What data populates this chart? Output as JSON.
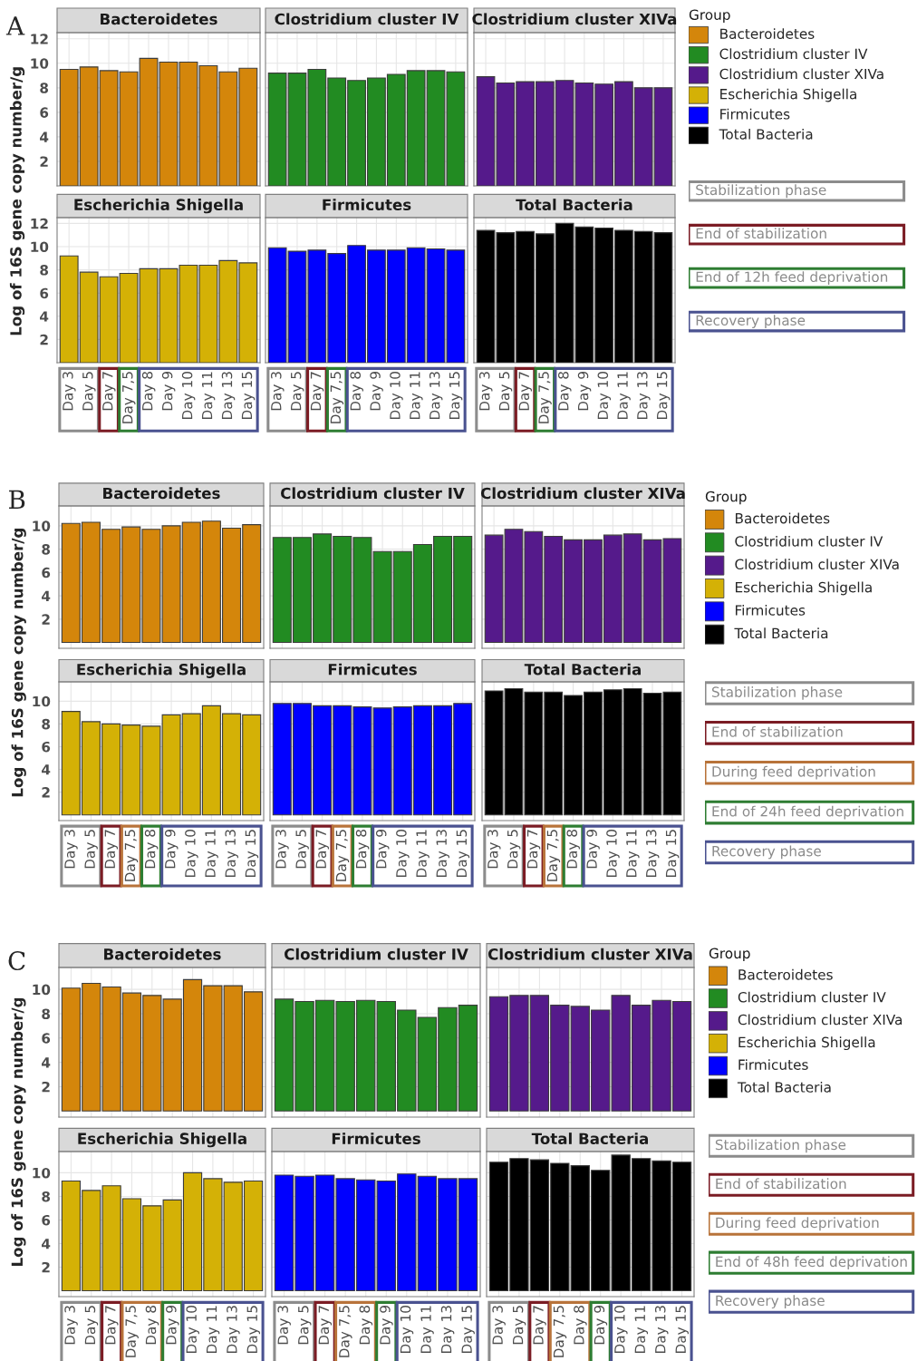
{
  "chart_data": [
    {
      "type": "bar",
      "title": "Bacteroidetes",
      "ylabel": "Log of 16S gene copy number/g",
      "annotations": [
        "A"
      ],
      "categories": [
        "Day 3",
        "Day 5",
        "Day 7",
        "Day 7,5",
        "Day 8",
        "Day 9",
        "Day 10",
        "Day 11",
        "Day 13",
        "Day 15"
      ],
      "values": [
        9.5,
        9.7,
        9.4,
        9.3,
        10.4,
        10.1,
        10.1,
        9.8,
        9.3,
        9.6
      ],
      "color": "#d4860b",
      "ylim": [
        0,
        12.5
      ],
      "yticks": [
        2,
        4,
        6,
        8,
        10,
        12
      ],
      "grid": true,
      "tick_labels": "y"
    },
    {
      "type": "bar",
      "title": "Clostridium cluster IV",
      "categories": [
        "Day 3",
        "Day 5",
        "Day 7",
        "Day 7,5",
        "Day 8",
        "Day 9",
        "Day 10",
        "Day 11",
        "Day 13",
        "Day 15"
      ],
      "values": [
        9.2,
        9.2,
        9.5,
        8.8,
        8.6,
        8.8,
        9.1,
        9.4,
        9.4,
        9.3
      ],
      "color": "#228b22",
      "ylim": [
        0,
        12.5
      ],
      "yticks": [
        2,
        4,
        6,
        8,
        10,
        12
      ],
      "grid": true,
      "tick_labels": false
    },
    {
      "type": "bar",
      "title": "Clostridium cluster XIVa",
      "categories": [
        "Day 3",
        "Day 5",
        "Day 7",
        "Day 7,5",
        "Day 8",
        "Day 9",
        "Day 10",
        "Day 11",
        "Day 13",
        "Day 15"
      ],
      "values": [
        8.9,
        8.4,
        8.5,
        8.5,
        8.6,
        8.4,
        8.3,
        8.5,
        8.0,
        8.0
      ],
      "color": "#551a8b",
      "ylim": [
        0,
        12.5
      ],
      "yticks": [
        2,
        4,
        6,
        8,
        10,
        12
      ],
      "grid": true,
      "tick_labels": false
    },
    {
      "type": "bar",
      "title": "Escherichia Shigella",
      "categories": [
        "Day 3",
        "Day 5",
        "Day 7",
        "Day 7,5",
        "Day 8",
        "Day 9",
        "Day 10",
        "Day 11",
        "Day 13",
        "Day 15"
      ],
      "values": [
        9.2,
        7.8,
        7.4,
        7.7,
        8.1,
        8.1,
        8.4,
        8.4,
        8.8,
        8.6
      ],
      "color": "#d4b106",
      "ylim": [
        0,
        12.5
      ],
      "yticks": [
        2,
        4,
        6,
        8,
        10,
        12
      ],
      "grid": true
    },
    {
      "type": "bar",
      "title": "Firmicutes",
      "categories": [
        "Day 3",
        "Day 5",
        "Day 7",
        "Day 7,5",
        "Day 8",
        "Day 9",
        "Day 10",
        "Day 11",
        "Day 13",
        "Day 15"
      ],
      "values": [
        9.9,
        9.6,
        9.7,
        9.4,
        10.1,
        9.7,
        9.7,
        9.9,
        9.8,
        9.7
      ],
      "color": "#0000ff",
      "ylim": [
        0,
        12.5
      ],
      "yticks": [
        2,
        4,
        6,
        8,
        10,
        12
      ],
      "grid": true,
      "tick_labels": "x"
    },
    {
      "type": "bar",
      "title": "Total Bacteria",
      "categories": [
        "Day 3",
        "Day 5",
        "Day 7",
        "Day 7,5",
        "Day 8",
        "Day 9",
        "Day 10",
        "Day 11",
        "Day 13",
        "Day 15"
      ],
      "values": [
        11.4,
        11.2,
        11.3,
        11.1,
        12.0,
        11.7,
        11.6,
        11.4,
        11.3,
        11.2
      ],
      "color": "#000000",
      "ylim": [
        0,
        12.5
      ],
      "yticks": [
        2,
        4,
        6,
        8,
        10,
        12
      ],
      "grid": true,
      "tick_labels": "x"
    },
    {
      "type": "other",
      "legend_title": "Group",
      "series": [
        {
          "name": "Bacteroidetes",
          "color": "#d4860b"
        },
        {
          "name": "Clostridium cluster IV",
          "color": "#228b22"
        },
        {
          "name": "Clostridium cluster XIVa",
          "color": "#551a8b"
        },
        {
          "name": "Escherichia Shigella",
          "color": "#d4b106"
        },
        {
          "name": "Firmicutes",
          "color": "#0000ff"
        },
        {
          "name": "Total Bacteria",
          "color": "#000000"
        }
      ],
      "annotations": [
        "Stabilization phase",
        "End of stabilization",
        "End of 12h feed deprivation",
        "Recovery phase"
      ],
      "colors": [
        "#8c8c8c",
        "#7b1c24",
        "#2e7d32",
        "#4a5290"
      ]
    },
    {
      "type": "bar",
      "title": "Bacteroidetes",
      "ylabel": "Log of 16S gene copy number/g",
      "annotations": [
        "B"
      ],
      "categories": [
        "Day 3",
        "Day 5",
        "Day 7",
        "Day 7,5",
        "Day 8",
        "Day 9",
        "Day 10",
        "Day 11",
        "Day 13",
        "Day 15"
      ],
      "values": [
        10.2,
        10.3,
        9.7,
        9.9,
        9.7,
        10.0,
        10.3,
        10.4,
        9.8,
        10.1
      ],
      "color": "#d4860b",
      "ylim": [
        -0.5,
        11.7
      ],
      "yticks": [
        2,
        4,
        6,
        8,
        10
      ],
      "grid": true,
      "tick_labels": "y"
    },
    {
      "type": "bar",
      "title": "Clostridium cluster IV",
      "categories": [
        "Day 3",
        "Day 5",
        "Day 7",
        "Day 7,5",
        "Day 8",
        "Day 9",
        "Day 10",
        "Day 11",
        "Day 13",
        "Day 15"
      ],
      "values": [
        9.0,
        9.0,
        9.3,
        9.1,
        9.0,
        7.8,
        7.8,
        8.4,
        9.1,
        9.1
      ],
      "color": "#228b22",
      "ylim": [
        -0.5,
        11.7
      ],
      "yticks": [
        2,
        4,
        6,
        8,
        10
      ],
      "grid": true,
      "tick_labels": false
    },
    {
      "type": "bar",
      "title": "Clostridium cluster XIVa",
      "categories": [
        "Day 3",
        "Day 5",
        "Day 7",
        "Day 7,5",
        "Day 8",
        "Day 9",
        "Day 10",
        "Day 11",
        "Day 13",
        "Day 15"
      ],
      "values": [
        9.2,
        9.7,
        9.5,
        9.1,
        8.8,
        8.8,
        9.2,
        9.3,
        8.8,
        8.9
      ],
      "color": "#551a8b",
      "ylim": [
        -0.5,
        11.7
      ],
      "yticks": [
        2,
        4,
        6,
        8,
        10
      ],
      "grid": true,
      "tick_labels": false
    },
    {
      "type": "bar",
      "title": "Escherichia Shigella",
      "categories": [
        "Day 3",
        "Day 5",
        "Day 7",
        "Day 7,5",
        "Day 8",
        "Day 9",
        "Day 10",
        "Day 11",
        "Day 13",
        "Day 15"
      ],
      "values": [
        9.1,
        8.2,
        8.0,
        7.9,
        7.8,
        8.8,
        8.9,
        9.6,
        8.9,
        8.8
      ],
      "color": "#d4b106",
      "ylim": [
        -0.5,
        11.7
      ],
      "yticks": [
        2,
        4,
        6,
        8,
        10
      ],
      "grid": true
    },
    {
      "type": "bar",
      "title": "Firmicutes",
      "categories": [
        "Day 3",
        "Day 5",
        "Day 7",
        "Day 7,5",
        "Day 8",
        "Day 9",
        "Day 10",
        "Day 11",
        "Day 13",
        "Day 15"
      ],
      "values": [
        9.8,
        9.8,
        9.6,
        9.6,
        9.5,
        9.4,
        9.5,
        9.6,
        9.6,
        9.8
      ],
      "color": "#0000ff",
      "ylim": [
        -0.5,
        11.7
      ],
      "yticks": [
        2,
        4,
        6,
        8,
        10
      ],
      "grid": true,
      "tick_labels": "x"
    },
    {
      "type": "bar",
      "title": "Total Bacteria",
      "categories": [
        "Day 3",
        "Day 5",
        "Day 7",
        "Day 7,5",
        "Day 8",
        "Day 9",
        "Day 10",
        "Day 11",
        "Day 13",
        "Day 15"
      ],
      "values": [
        10.9,
        11.1,
        10.8,
        10.8,
        10.5,
        10.8,
        11.0,
        11.1,
        10.7,
        10.8
      ],
      "color": "#000000",
      "ylim": [
        -0.5,
        11.7
      ],
      "yticks": [
        2,
        4,
        6,
        8,
        10
      ],
      "grid": true,
      "tick_labels": "x"
    },
    {
      "type": "other",
      "legend_title": "Group",
      "series": [
        {
          "name": "Bacteroidetes",
          "color": "#d4860b"
        },
        {
          "name": "Clostridium cluster IV",
          "color": "#228b22"
        },
        {
          "name": "Clostridium cluster XIVa",
          "color": "#551a8b"
        },
        {
          "name": "Escherichia Shigella",
          "color": "#d4b106"
        },
        {
          "name": "Firmicutes",
          "color": "#0000ff"
        },
        {
          "name": "Total Bacteria",
          "color": "#000000"
        }
      ],
      "annotations": [
        "Stabilization phase",
        "End of stabilization",
        "During feed deprivation",
        "End of 24h feed deprivation",
        "Recovery phase"
      ],
      "colors": [
        "#8c8c8c",
        "#7b1c24",
        "#b8733a",
        "#2e7d32",
        "#4a5290"
      ]
    },
    {
      "type": "bar",
      "title": "Bacteroidetes",
      "ylabel": "Log of 16S gene copy number/g",
      "annotations": [
        "C"
      ],
      "categories": [
        "Day 3",
        "Day 5",
        "Day 7",
        "Day 7,5",
        "Day 8",
        "Day 9",
        "Day 10",
        "Day 11",
        "Day 13",
        "Day 15"
      ],
      "values": [
        10.1,
        10.5,
        10.2,
        9.7,
        9.5,
        9.2,
        10.8,
        10.3,
        10.3,
        9.8
      ],
      "color": "#d4860b",
      "ylim": [
        -0.5,
        11.8
      ],
      "yticks": [
        2,
        4,
        6,
        8,
        10
      ],
      "grid": true,
      "tick_labels": "y"
    },
    {
      "type": "bar",
      "title": "Clostridium cluster IV",
      "categories": [
        "Day 3",
        "Day 5",
        "Day 7",
        "Day 7,5",
        "Day 8",
        "Day 9",
        "Day 10",
        "Day 11",
        "Day 13",
        "Day 15"
      ],
      "values": [
        9.2,
        9.0,
        9.1,
        9.0,
        9.1,
        9.0,
        8.3,
        7.7,
        8.5,
        8.7
      ],
      "color": "#228b22",
      "ylim": [
        -0.5,
        11.8
      ],
      "yticks": [
        2,
        4,
        6,
        8,
        10
      ],
      "grid": true,
      "tick_labels": false
    },
    {
      "type": "bar",
      "title": "Clostridium cluster XIVa",
      "categories": [
        "Day 3",
        "Day 5",
        "Day 7",
        "Day 7,5",
        "Day 8",
        "Day 9",
        "Day 10",
        "Day 11",
        "Day 13",
        "Day 15"
      ],
      "values": [
        9.4,
        9.5,
        9.5,
        8.7,
        8.6,
        8.3,
        9.5,
        8.7,
        9.1,
        9.0
      ],
      "color": "#551a8b",
      "ylim": [
        -0.5,
        11.8
      ],
      "yticks": [
        2,
        4,
        6,
        8,
        10
      ],
      "grid": true,
      "tick_labels": false
    },
    {
      "type": "bar",
      "title": "Escherichia Shigella",
      "categories": [
        "Day 3",
        "Day 5",
        "Day 7",
        "Day 7,5",
        "Day 8",
        "Day 9",
        "Day 10",
        "Day 11",
        "Day 13",
        "Day 15"
      ],
      "values": [
        9.3,
        8.5,
        8.9,
        7.8,
        7.2,
        7.7,
        10.0,
        9.5,
        9.2,
        9.3
      ],
      "color": "#d4b106",
      "ylim": [
        -0.5,
        11.8
      ],
      "yticks": [
        2,
        4,
        6,
        8,
        10
      ],
      "grid": true
    },
    {
      "type": "bar",
      "title": "Firmicutes",
      "categories": [
        "Day 3",
        "Day 5",
        "Day 7",
        "Day 7,5",
        "Day 8",
        "Day 9",
        "Day 10",
        "Day 11",
        "Day 13",
        "Day 15"
      ],
      "values": [
        9.8,
        9.7,
        9.8,
        9.5,
        9.4,
        9.3,
        9.9,
        9.7,
        9.5,
        9.5
      ],
      "color": "#0000ff",
      "ylim": [
        -0.5,
        11.8
      ],
      "yticks": [
        2,
        4,
        6,
        8,
        10
      ],
      "grid": true,
      "tick_labels": "x"
    },
    {
      "type": "bar",
      "title": "Total Bacteria",
      "categories": [
        "Day 3",
        "Day 5",
        "Day 7",
        "Day 7,5",
        "Day 8",
        "Day 9",
        "Day 10",
        "Day 11",
        "Day 13",
        "Day 15"
      ],
      "values": [
        10.9,
        11.2,
        11.1,
        10.8,
        10.6,
        10.2,
        11.5,
        11.2,
        11.0,
        10.9
      ],
      "color": "#000000",
      "ylim": [
        -0.5,
        11.8
      ],
      "yticks": [
        2,
        4,
        6,
        8,
        10
      ],
      "grid": true,
      "tick_labels": "x"
    },
    {
      "type": "other",
      "legend_title": "Group",
      "series": [
        {
          "name": "Bacteroidetes",
          "color": "#d4860b"
        },
        {
          "name": "Clostridium cluster IV",
          "color": "#228b22"
        },
        {
          "name": "Clostridium cluster XIVa",
          "color": "#551a8b"
        },
        {
          "name": "Escherichia Shigella",
          "color": "#d4b106"
        },
        {
          "name": "Firmicutes",
          "color": "#0000ff"
        },
        {
          "name": "Total Bacteria",
          "color": "#000000"
        }
      ],
      "annotations": [
        "Stabilization phase",
        "End of stabilization",
        "During feed deprivation",
        "End of 48h feed deprivation",
        "Recovery phase"
      ],
      "colors": [
        "#8c8c8c",
        "#7b1c24",
        "#b8733a",
        "#2e7d32",
        "#4a5290"
      ]
    }
  ]
}
